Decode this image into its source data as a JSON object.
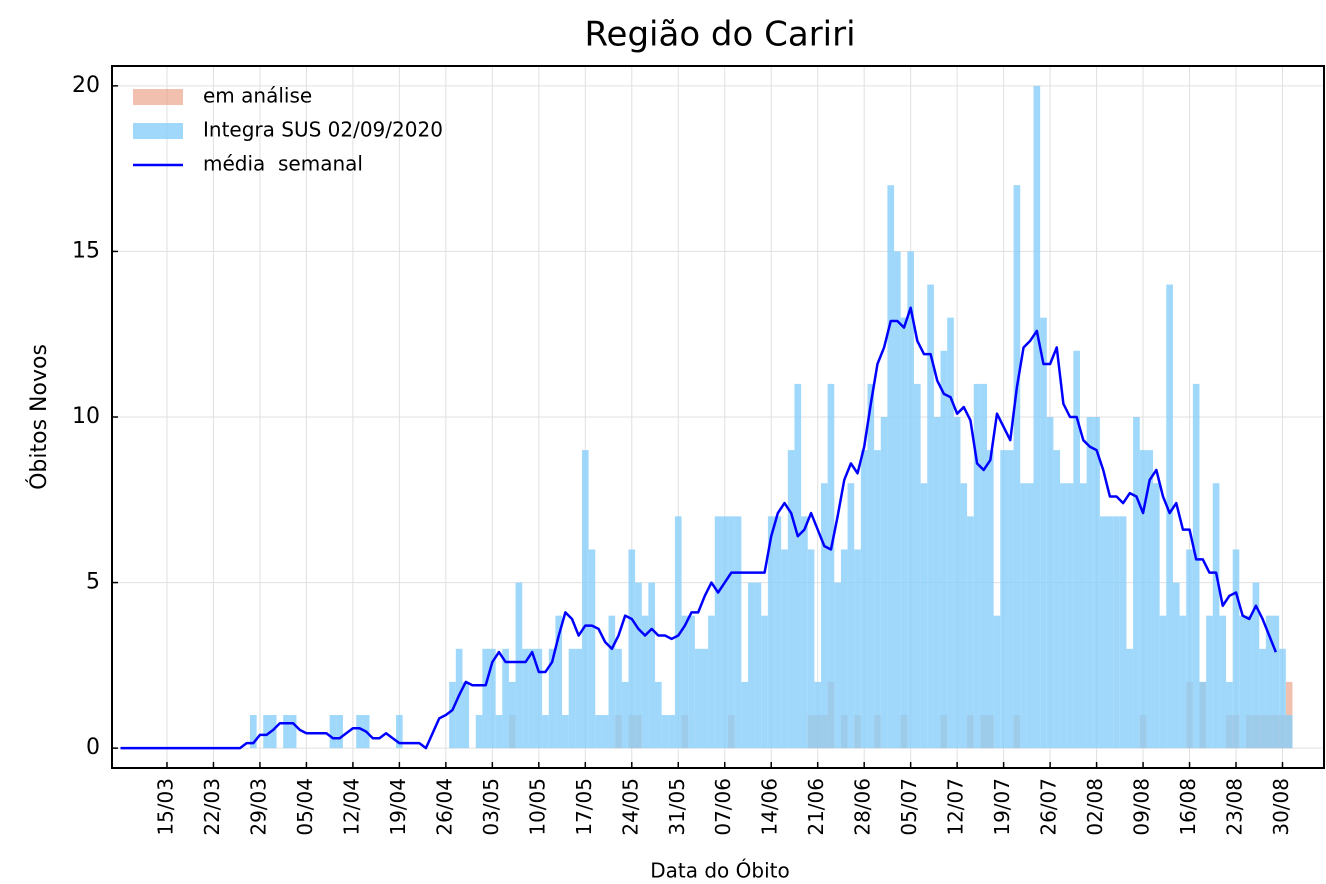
{
  "chart_data": {
    "type": "bar",
    "title": "Região do Cariri",
    "x_label": "Data do Óbito",
    "y_label": "Óbitos Novos",
    "categories": [
      null,
      null,
      null,
      null,
      null,
      null,
      null,
      "15/03",
      null,
      null,
      null,
      null,
      null,
      null,
      "22/03",
      null,
      null,
      null,
      null,
      null,
      null,
      "29/03",
      null,
      null,
      null,
      null,
      null,
      null,
      "05/04",
      null,
      null,
      null,
      null,
      null,
      null,
      "12/04",
      null,
      null,
      null,
      null,
      null,
      null,
      "19/04",
      null,
      null,
      null,
      null,
      null,
      null,
      "26/04",
      null,
      null,
      null,
      null,
      null,
      null,
      "03/05",
      null,
      null,
      null,
      null,
      null,
      null,
      "10/05",
      null,
      null,
      null,
      null,
      null,
      null,
      "17/05",
      null,
      null,
      null,
      null,
      null,
      null,
      "24/05",
      null,
      null,
      null,
      null,
      null,
      null,
      "31/05",
      null,
      null,
      null,
      null,
      null,
      null,
      "07/06",
      null,
      null,
      null,
      null,
      null,
      null,
      "14/06",
      null,
      null,
      null,
      null,
      null,
      null,
      "21/06",
      null,
      null,
      null,
      null,
      null,
      null,
      "28/06",
      null,
      null,
      null,
      null,
      null,
      null,
      "05/07",
      null,
      null,
      null,
      null,
      null,
      null,
      "12/07",
      null,
      null,
      null,
      null,
      null,
      null,
      "19/07",
      null,
      null,
      null,
      null,
      null,
      null,
      "26/07",
      null,
      null,
      null,
      null,
      null,
      null,
      "02/08",
      null,
      null,
      null,
      null,
      null,
      null,
      "09/08",
      null,
      null,
      null,
      null,
      null,
      null,
      "16/08",
      null,
      null,
      null,
      null,
      null,
      null,
      "23/08",
      null,
      null,
      null,
      null,
      null,
      null,
      "30/08",
      null
    ],
    "series": [
      {
        "name": "em análise",
        "color": "#e9967a",
        "values": [
          0,
          0,
          0,
          0,
          0,
          0,
          0,
          0,
          0,
          0,
          0,
          0,
          0,
          0,
          0,
          0,
          0,
          0,
          0,
          0,
          0,
          0,
          0,
          0,
          0,
          0,
          0,
          0,
          0,
          0,
          0,
          0,
          0,
          0,
          0,
          0,
          0,
          0,
          0,
          0,
          0,
          0,
          0,
          0,
          0,
          0,
          0,
          0,
          0,
          0,
          0,
          0,
          0,
          0,
          0,
          0,
          0,
          0,
          0,
          1,
          0,
          0,
          0,
          0,
          0,
          0,
          0,
          0,
          0,
          0,
          0,
          0,
          0,
          0,
          0,
          1,
          0,
          1,
          1,
          0,
          0,
          0,
          0,
          0,
          0,
          1,
          0,
          0,
          0,
          0,
          0,
          0,
          1,
          0,
          0,
          0,
          0,
          0,
          0,
          0,
          0,
          0,
          0,
          0,
          1,
          1,
          1,
          2,
          0,
          1,
          0,
          1,
          0,
          0,
          1,
          0,
          0,
          0,
          1,
          0,
          0,
          0,
          0,
          0,
          1,
          0,
          0,
          0,
          1,
          0,
          1,
          1,
          0,
          0,
          0,
          1,
          0,
          0,
          0,
          0,
          0,
          0,
          0,
          0,
          0,
          0,
          0,
          0,
          0,
          0,
          0,
          0,
          0,
          0,
          1,
          0,
          0,
          0,
          0,
          0,
          0,
          2,
          0,
          2,
          0,
          0,
          0,
          1,
          1,
          0,
          1,
          1,
          1,
          1,
          1,
          1,
          2
        ]
      },
      {
        "name": "Integra SUS 02/09/2020",
        "color": "#87cefa",
        "values": [
          0,
          0,
          0,
          0,
          0,
          0,
          0,
          0,
          0,
          0,
          0,
          0,
          0,
          0,
          0,
          0,
          0,
          0,
          0,
          0,
          1,
          0,
          1,
          1,
          0,
          1,
          1,
          0,
          0,
          0,
          0,
          0,
          1,
          1,
          0,
          0,
          1,
          1,
          0,
          0,
          0,
          0,
          1,
          0,
          0,
          0,
          0,
          0,
          0,
          0,
          2,
          3,
          2,
          0,
          1,
          3,
          3,
          1,
          3,
          2,
          5,
          3,
          3,
          3,
          1,
          3,
          4,
          1,
          3,
          3,
          9,
          6,
          1,
          1,
          4,
          3,
          2,
          6,
          5,
          4,
          5,
          2,
          1,
          1,
          7,
          4,
          4,
          3,
          3,
          4,
          7,
          7,
          7,
          7,
          2,
          5,
          5,
          4,
          7,
          7,
          6,
          9,
          11,
          7,
          6,
          2,
          8,
          11,
          5,
          6,
          8,
          6,
          9,
          11,
          9,
          10,
          17,
          15,
          13,
          15,
          11,
          8,
          14,
          10,
          12,
          13,
          10,
          8,
          7,
          11,
          11,
          9,
          4,
          9,
          9,
          17,
          8,
          8,
          20,
          13,
          10,
          9,
          8,
          8,
          12,
          8,
          10,
          10,
          7,
          7,
          7,
          7,
          3,
          10,
          9,
          9,
          8,
          4,
          14,
          5,
          4,
          6,
          11,
          2,
          4,
          8,
          4,
          2,
          6,
          4,
          4,
          5,
          3,
          4,
          4,
          3,
          1
        ]
      },
      {
        "name": "média  semanal",
        "type": "line",
        "color": "#0000ff",
        "values": [
          0,
          0,
          0,
          0,
          0,
          0,
          0,
          0,
          0,
          0,
          0,
          0,
          0,
          0,
          0,
          0,
          0,
          0,
          0,
          0.15,
          0.15,
          0.4,
          0.4,
          0.55,
          0.75,
          0.75,
          0.75,
          0.55,
          0.45,
          0.45,
          0.45,
          0.45,
          0.3,
          0.3,
          0.45,
          0.6,
          0.6,
          0.5,
          0.3,
          0.3,
          0.45,
          0.3,
          0.15,
          0.15,
          0.15,
          0.15,
          0,
          0.45,
          0.9,
          1,
          1.15,
          1.6,
          2,
          1.9,
          1.9,
          1.9,
          2.6,
          2.9,
          2.6,
          2.6,
          2.6,
          2.6,
          2.9,
          2.3,
          2.3,
          2.6,
          3.4,
          4.1,
          3.9,
          3.4,
          3.7,
          3.7,
          3.6,
          3.2,
          3,
          3.4,
          4,
          3.9,
          3.6,
          3.4,
          3.6,
          3.4,
          3.4,
          3.3,
          3.4,
          3.7,
          4.1,
          4.1,
          4.6,
          5,
          4.7,
          5,
          5.3,
          5.3,
          5.3,
          5.3,
          5.3,
          5.3,
          6.4,
          7.1,
          7.4,
          7.1,
          6.4,
          6.6,
          7.1,
          6.6,
          6.1,
          6,
          7,
          8.1,
          8.6,
          8.3,
          9.1,
          10.4,
          11.6,
          12.1,
          12.9,
          12.9,
          12.7,
          13.3,
          12.3,
          11.9,
          11.9,
          11.1,
          10.7,
          10.6,
          10.1,
          10.3,
          9.9,
          8.6,
          8.4,
          8.7,
          10.1,
          9.7,
          9.3,
          10.9,
          12.1,
          12.3,
          12.6,
          11.6,
          11.6,
          12.1,
          10.4,
          10,
          10,
          9.3,
          9.1,
          9,
          8.4,
          7.6,
          7.6,
          7.4,
          7.7,
          7.6,
          7.1,
          8.1,
          8.4,
          7.6,
          7.1,
          7.4,
          6.6,
          6.6,
          5.7,
          5.7,
          5.3,
          5.3,
          4.3,
          4.6,
          4.7,
          4,
          3.9,
          4.3,
          3.9,
          3.4,
          2.9,
          null,
          null
        ]
      }
    ],
    "ylim": [
      -0.6,
      20.6
    ],
    "yticks": [
      0,
      5,
      10,
      15,
      20
    ],
    "grid": true,
    "legend": "upper left"
  }
}
